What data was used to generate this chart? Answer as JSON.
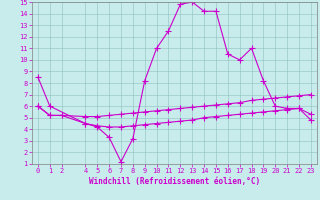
{
  "xlabel": "Windchill (Refroidissement éolien,°C)",
  "xmin": -0.5,
  "xmax": 23.5,
  "ymin": 1,
  "ymax": 15,
  "bg_color": "#c8ecec",
  "grid_color": "#90c0c0",
  "line_color": "#cc00cc",
  "line1_x": [
    0,
    1,
    4,
    5,
    6,
    7,
    8,
    9,
    10,
    11,
    12,
    13,
    14,
    15,
    16,
    17,
    18,
    19,
    20,
    21,
    22,
    23
  ],
  "line1_y": [
    8.5,
    6.0,
    4.5,
    4.2,
    3.3,
    1.2,
    3.2,
    8.2,
    11.0,
    12.5,
    14.8,
    15.0,
    14.2,
    14.2,
    10.5,
    10.0,
    11.0,
    8.2,
    6.0,
    5.8,
    5.8,
    5.3
  ],
  "line2_x": [
    0,
    1,
    2,
    4,
    5,
    6,
    7,
    8,
    9,
    10,
    11,
    12,
    13,
    14,
    15,
    16,
    17,
    18,
    19,
    20,
    21,
    22,
    23
  ],
  "line2_y": [
    6.0,
    5.2,
    5.2,
    5.1,
    5.1,
    5.2,
    5.3,
    5.4,
    5.5,
    5.6,
    5.7,
    5.8,
    5.9,
    6.0,
    6.1,
    6.2,
    6.3,
    6.5,
    6.6,
    6.7,
    6.8,
    6.9,
    7.0
  ],
  "line3_x": [
    0,
    1,
    2,
    4,
    5,
    6,
    7,
    8,
    9,
    10,
    11,
    12,
    13,
    14,
    15,
    16,
    17,
    18,
    19,
    20,
    21,
    22,
    23
  ],
  "line3_y": [
    6.0,
    5.2,
    5.2,
    4.5,
    4.3,
    4.2,
    4.2,
    4.3,
    4.4,
    4.5,
    4.6,
    4.7,
    4.8,
    5.0,
    5.1,
    5.2,
    5.3,
    5.4,
    5.5,
    5.6,
    5.7,
    5.8,
    4.8
  ],
  "marker": "+",
  "markersize": 4,
  "markeredgewidth": 0.8,
  "linewidth": 0.8,
  "xtick_vals": [
    0,
    1,
    2,
    4,
    5,
    6,
    7,
    8,
    9,
    10,
    11,
    12,
    13,
    14,
    15,
    16,
    17,
    18,
    19,
    20,
    21,
    22,
    23
  ],
  "xtick_labels": [
    "0",
    "1",
    "2",
    "4",
    "5",
    "6",
    "7",
    "8",
    "9",
    "10",
    "11",
    "12",
    "13",
    "14",
    "15",
    "16",
    "17",
    "18",
    "19",
    "20",
    "21",
    "22",
    "23"
  ],
  "ytick_vals": [
    1,
    2,
    3,
    4,
    5,
    6,
    7,
    8,
    9,
    10,
    11,
    12,
    13,
    14,
    15
  ],
  "tick_fontsize": 5.0,
  "xlabel_fontsize": 5.5
}
